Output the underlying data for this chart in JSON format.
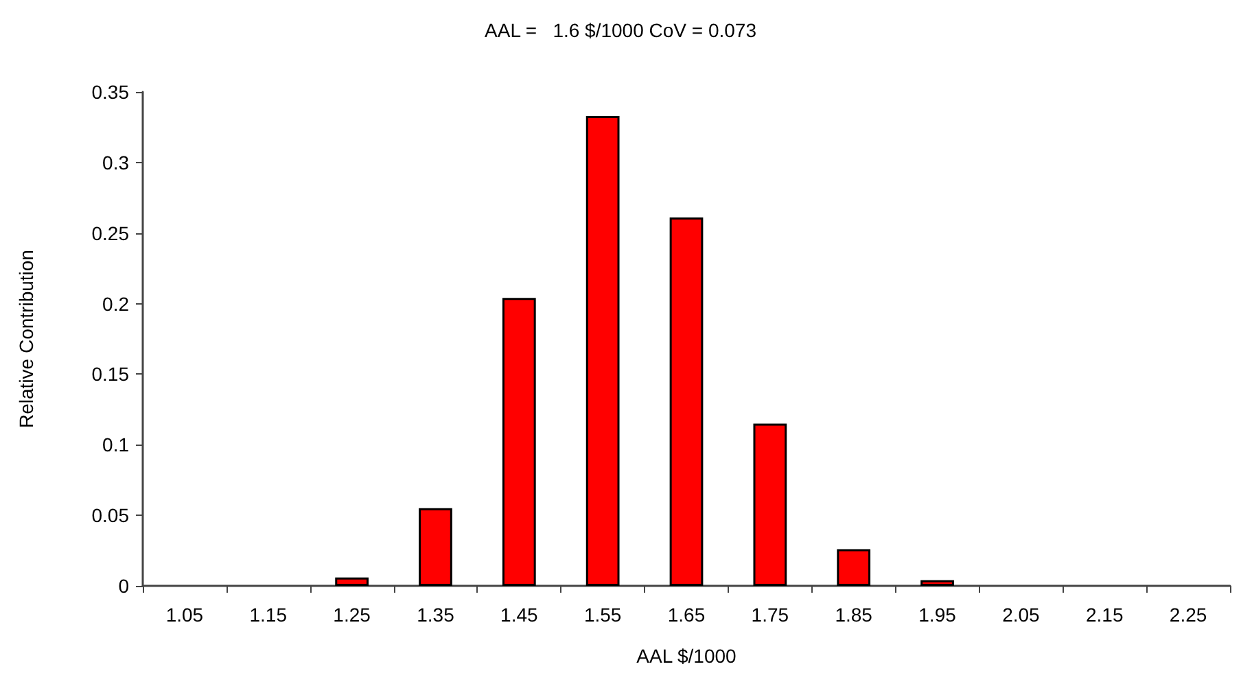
{
  "chart_data": {
    "type": "bar",
    "title": "AAL =   1.6 $/1000 CoV = 0.073",
    "xlabel": "AAL $/1000",
    "ylabel": "Relative Contribution",
    "categories": [
      "1.05",
      "1.15",
      "1.25",
      "1.35",
      "1.45",
      "1.55",
      "1.65",
      "1.75",
      "1.85",
      "1.95",
      "2.05",
      "2.15",
      "2.25"
    ],
    "values": [
      0,
      0,
      0.006,
      0.055,
      0.204,
      0.333,
      0.261,
      0.115,
      0.026,
      0.004,
      0,
      0,
      0
    ],
    "color": "#ff0000",
    "ylim": [
      0,
      0.35
    ],
    "yticks": [
      0,
      0.05,
      0.1,
      0.15,
      0.2,
      0.25,
      0.3,
      0.35
    ],
    "grid": false
  }
}
